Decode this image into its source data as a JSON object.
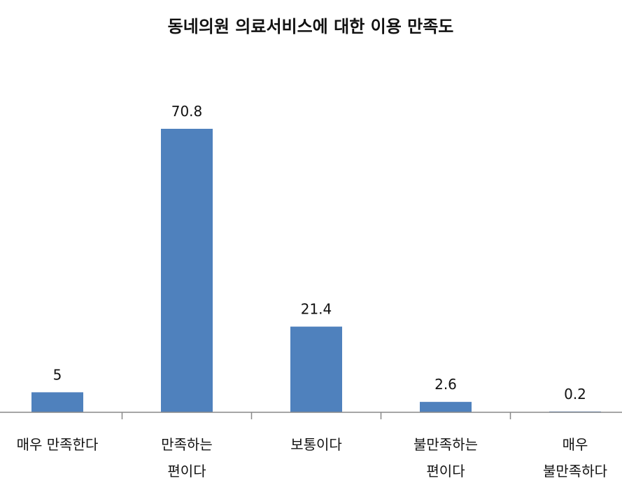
{
  "chart_data": {
    "type": "bar",
    "title": "동네의원 의료서비스에 대한 이용 만족도",
    "xlabel": "",
    "ylabel": "",
    "categories": [
      [
        "매우 만족한다"
      ],
      [
        "만족하는",
        "편이다"
      ],
      [
        "보통이다"
      ],
      [
        "불만족하는",
        "편이다"
      ],
      [
        "매우",
        "불만족하다"
      ]
    ],
    "values": [
      5,
      70.8,
      21.4,
      2.6,
      0.2
    ],
    "value_labels": [
      "5",
      "70.8",
      "21.4",
      "2.6",
      "0.2"
    ],
    "ylim": [
      0,
      70.8
    ],
    "grid": false,
    "legend": "none",
    "bar_color": "#4F81BD",
    "axis_color": "#888888"
  }
}
